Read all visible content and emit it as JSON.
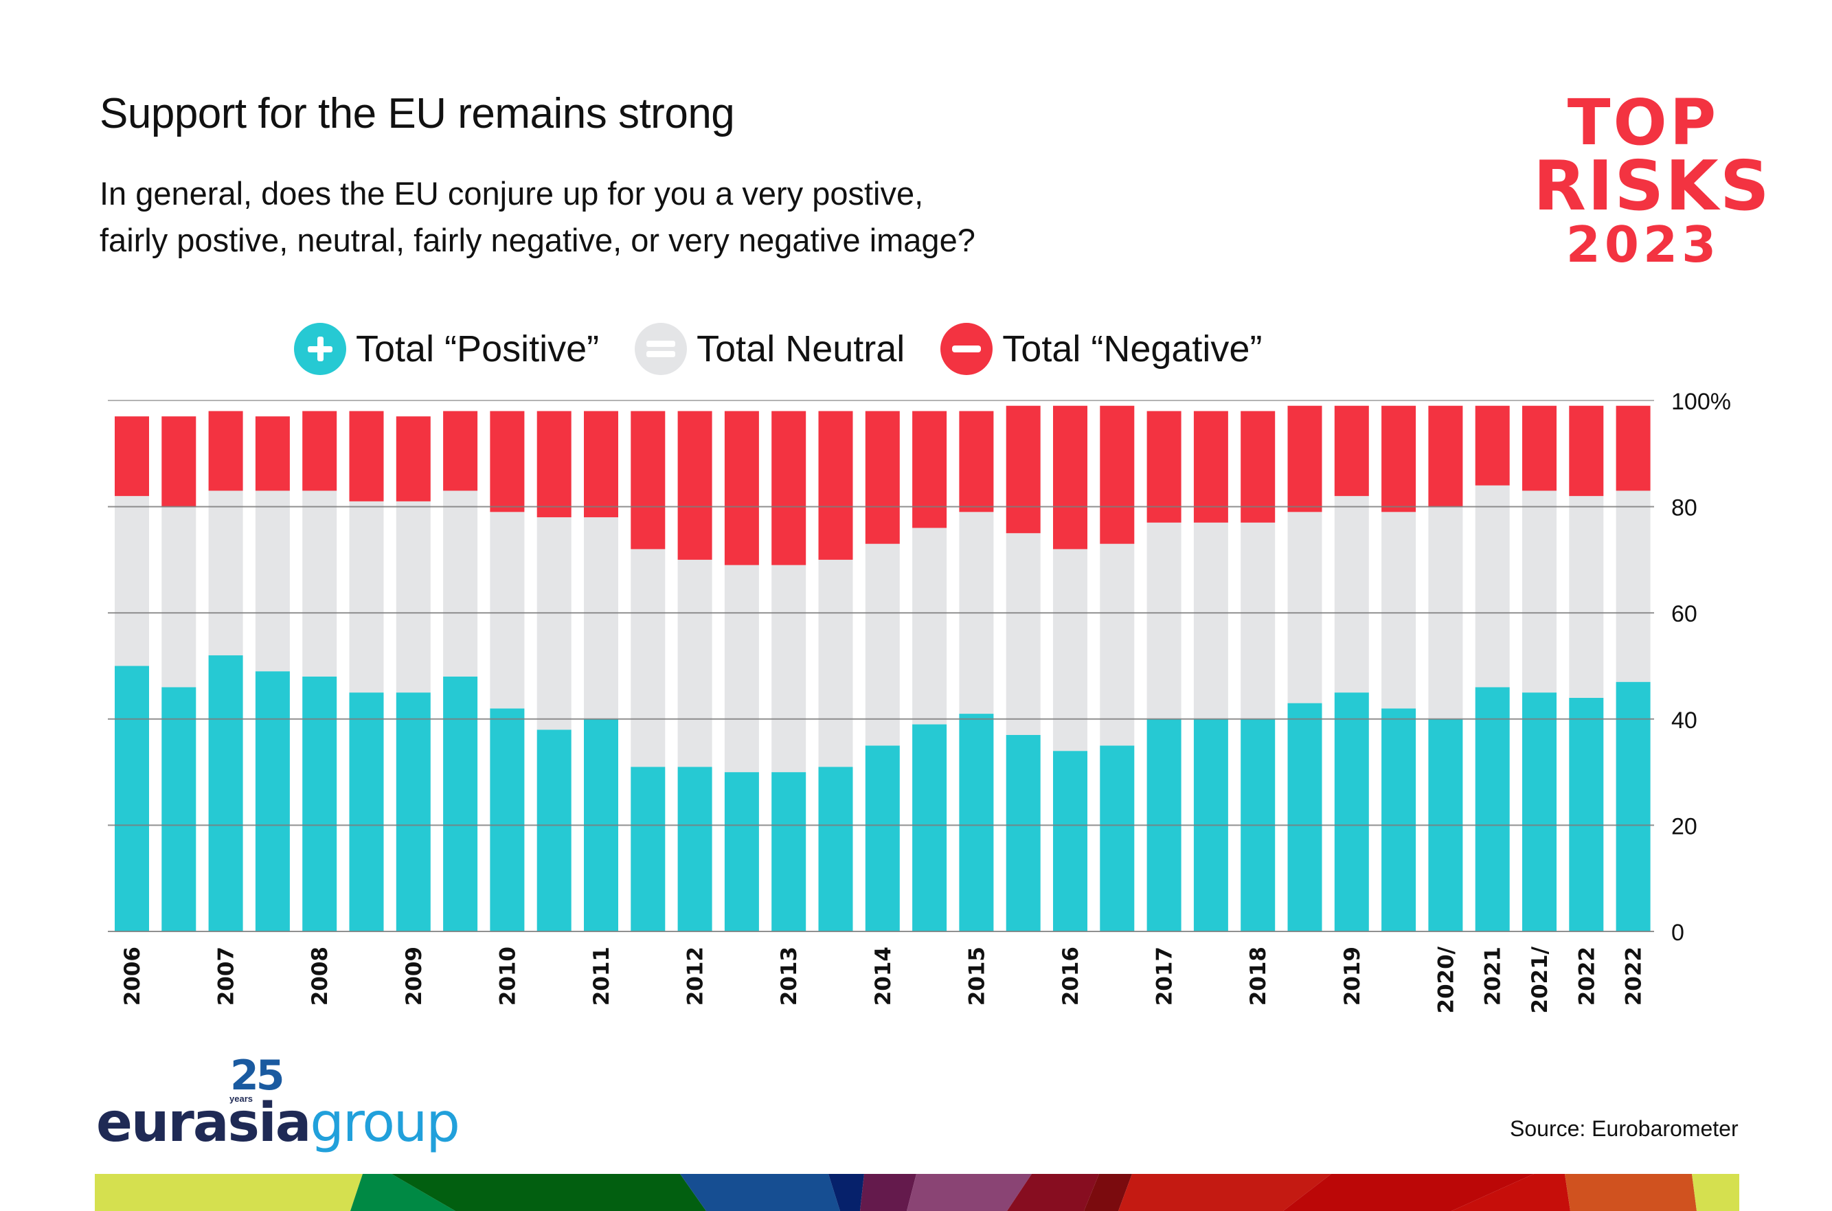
{
  "header": {
    "title": "Support for the EU remains strong",
    "subtitle_line1": "In general, does the EU conjure up for you a very postive,",
    "subtitle_line2": "fairly postive, neutral, fairly negative, or very negative image?"
  },
  "badge": {
    "line1": "TOP",
    "line2": "RISKS",
    "line3": "2023"
  },
  "legend": [
    {
      "label": "Total “Positive”",
      "icon": "plus-icon",
      "color": "#26c9d3"
    },
    {
      "label": "Total Neutral",
      "icon": "equals-icon",
      "color": "#e4e5e7"
    },
    {
      "label": "Total “Negative”",
      "icon": "minus-icon",
      "color": "#f33341"
    }
  ],
  "chart_data": {
    "type": "bar",
    "stacked": true,
    "title": "Support for the EU remains strong",
    "xlabel": "",
    "ylabel": "",
    "ylim": [
      0,
      100
    ],
    "yticks": [
      0,
      20,
      40,
      60,
      80,
      100
    ],
    "ytick_labels": [
      "0",
      "20",
      "40",
      "60",
      "80",
      "100%"
    ],
    "y_axis_side": "right",
    "grid": true,
    "legend_position": "top",
    "categories": [
      "2006",
      "",
      "2007",
      "",
      "2008",
      "",
      "2009",
      "",
      "2010",
      "",
      "2011",
      "",
      "2012",
      "",
      "2013",
      "",
      "2014",
      "",
      "2015",
      "",
      "2016",
      "",
      "2017",
      "",
      "2018",
      "",
      "2019",
      "",
      "2020/",
      "2021",
      "2021/",
      "2022",
      "2022"
    ],
    "series": [
      {
        "name": "Total “Positive”",
        "color": "#26c9d3",
        "values": [
          50,
          46,
          52,
          49,
          48,
          45,
          45,
          48,
          42,
          38,
          40,
          31,
          31,
          30,
          30,
          31,
          35,
          39,
          41,
          37,
          34,
          35,
          40,
          40,
          40,
          43,
          45,
          42,
          40,
          46,
          45,
          44,
          47
        ]
      },
      {
        "name": "Total Neutral",
        "color": "#e4e5e7",
        "values": [
          32,
          34,
          31,
          34,
          35,
          36,
          36,
          35,
          37,
          40,
          38,
          41,
          39,
          39,
          39,
          39,
          38,
          37,
          38,
          38,
          38,
          38,
          37,
          37,
          37,
          36,
          37,
          37,
          40,
          38,
          38,
          38,
          36
        ]
      },
      {
        "name": "Total “Negative”",
        "color": "#f33341",
        "values": [
          15,
          17,
          15,
          14,
          15,
          17,
          16,
          15,
          19,
          20,
          20,
          26,
          28,
          29,
          29,
          28,
          25,
          22,
          19,
          24,
          27,
          26,
          21,
          21,
          21,
          20,
          17,
          20,
          19,
          15,
          16,
          17,
          16
        ]
      }
    ],
    "source": "Source: Eurobarometer"
  },
  "footer": {
    "source": "Source: Eurobarometer",
    "logo_anniversary": "25",
    "logo_years": "years",
    "logo_word1": "eurasia",
    "logo_word2": "group"
  }
}
